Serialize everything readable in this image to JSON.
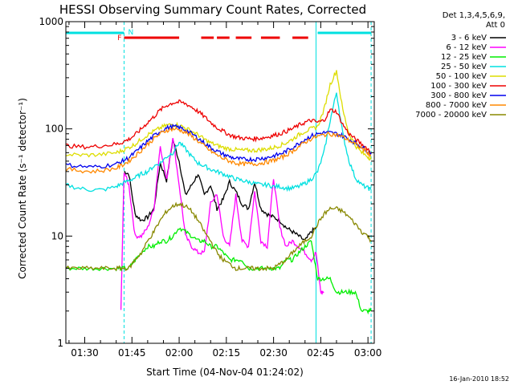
{
  "chart_data": {
    "type": "line",
    "title": "HESSI Observing Summary Count Rates, Corrected",
    "xlabel": "Start Time (04-Nov-04 01:24:02)",
    "ylabel": "Corrected Count Rate (s⁻¹ detector⁻¹)",
    "yscale": "log",
    "ylim": [
      1,
      1000
    ],
    "xlim_minutes": [
      84,
      182
    ],
    "x_tick_labels": [
      "01:30",
      "01:45",
      "02:00",
      "02:15",
      "02:30",
      "02:45",
      "03:00"
    ],
    "y_tick_labels": [
      "1",
      "10",
      "100",
      "1000"
    ],
    "legend_header": [
      "Det 1,3,4,5,6,9,",
      "Att 0"
    ],
    "legend_placement": "right",
    "footer": "16-Jan-2010 18:52",
    "flags": [
      {
        "name": "night",
        "label": "",
        "color": "#00e0e0",
        "segments": [
          [
            84,
            102.5
          ],
          [
            164,
            181
          ]
        ]
      },
      {
        "name": "F",
        "label": "F",
        "color": "#ee0000",
        "segments": [
          [
            102.5,
            120
          ],
          [
            127,
            131
          ],
          [
            132,
            136
          ],
          [
            138,
            143
          ],
          [
            146,
            152
          ],
          [
            156,
            161
          ]
        ]
      },
      {
        "name": "N",
        "label": "N",
        "color": "#00e0e0",
        "segments": []
      }
    ],
    "vertical_lines": [
      {
        "x": 84,
        "color": "#00e0e0",
        "style": "solid"
      },
      {
        "x": 102.5,
        "color": "#00e0e0",
        "style": "dashed"
      },
      {
        "x": 163.5,
        "color": "#00e0e0",
        "style": "solid"
      },
      {
        "x": 181,
        "color": "#00e0e0",
        "style": "dashed"
      }
    ],
    "series": [
      {
        "name": "3 - 6 keV",
        "color": "#000000",
        "x": [
          102.5,
          104,
          106,
          108,
          110,
          112,
          114,
          116,
          118,
          120,
          122,
          124,
          126,
          128,
          130,
          132,
          134,
          136,
          138,
          140,
          142,
          144,
          146,
          148,
          150,
          152,
          154,
          156,
          158,
          160,
          162,
          163.5
        ],
        "y": [
          40,
          38,
          16,
          14,
          15,
          18,
          48,
          33,
          80,
          50,
          24,
          30,
          38,
          24,
          30,
          18,
          22,
          32,
          26,
          20,
          18,
          32,
          18,
          16,
          15,
          14,
          12,
          11,
          10,
          9,
          11,
          12
        ]
      },
      {
        "name": "6 - 12 keV",
        "color": "#ff00ff",
        "x": [
          101.5,
          102.5,
          104,
          106,
          108,
          110,
          112,
          114,
          116,
          118,
          120,
          122,
          124,
          126,
          128,
          130,
          132,
          134,
          136,
          138,
          140,
          142,
          144,
          146,
          148,
          150,
          152,
          154,
          156,
          158,
          160,
          162,
          163.5,
          165,
          166
        ],
        "y": [
          2,
          40,
          30,
          10,
          10,
          12,
          18,
          70,
          33,
          85,
          30,
          10,
          8,
          7,
          7,
          20,
          25,
          10,
          8,
          24,
          9,
          8,
          26,
          9,
          8,
          35,
          12,
          8,
          9,
          8,
          7,
          6,
          7,
          3,
          3
        ]
      },
      {
        "name": "12 - 25 keV",
        "color": "#00ee00",
        "x": [
          84,
          88,
          92,
          96,
          100,
          102,
          104,
          106,
          108,
          110,
          112,
          114,
          116,
          118,
          120,
          122,
          124,
          126,
          128,
          130,
          132,
          134,
          136,
          138,
          140,
          142,
          144,
          146,
          148,
          150,
          152,
          154,
          156,
          158,
          160,
          162,
          164,
          166,
          168,
          170,
          172,
          174,
          176,
          178,
          180,
          181
        ],
        "y": [
          5,
          5,
          5,
          5,
          5,
          5,
          5,
          6,
          7,
          8,
          8,
          9,
          9,
          10,
          12,
          11,
          10,
          9,
          9,
          8,
          8,
          7,
          6,
          6,
          6,
          5,
          5,
          5,
          5,
          5,
          5,
          6,
          6,
          7,
          8,
          9,
          4,
          4,
          4,
          3,
          3,
          3,
          3,
          2,
          2,
          2
        ]
      },
      {
        "name": "25 - 50 keV",
        "color": "#00e0e0",
        "x": [
          84,
          88,
          92,
          96,
          100,
          102,
          104,
          106,
          108,
          110,
          112,
          114,
          116,
          118,
          120,
          122,
          124,
          126,
          128,
          130,
          132,
          134,
          136,
          138,
          140,
          142,
          144,
          146,
          148,
          150,
          152,
          154,
          156,
          158,
          160,
          162,
          164,
          166,
          168,
          170,
          172,
          174,
          176,
          178,
          180,
          181
        ],
        "y": [
          30,
          28,
          27,
          27,
          29,
          31,
          33,
          35,
          38,
          40,
          45,
          48,
          55,
          60,
          75,
          65,
          55,
          48,
          45,
          42,
          40,
          38,
          36,
          34,
          33,
          32,
          31,
          30,
          30,
          29,
          29,
          28,
          28,
          29,
          31,
          34,
          40,
          60,
          120,
          220,
          90,
          50,
          35,
          30,
          28,
          27
        ]
      },
      {
        "name": "50 - 100 keV",
        "color": "#dddd00",
        "x": [
          84,
          88,
          92,
          96,
          100,
          102,
          104,
          106,
          108,
          110,
          112,
          114,
          116,
          118,
          120,
          122,
          124,
          126,
          128,
          130,
          132,
          134,
          136,
          138,
          140,
          142,
          144,
          146,
          148,
          150,
          152,
          154,
          156,
          158,
          160,
          162,
          164,
          166,
          168,
          170,
          172,
          174,
          176,
          178,
          180,
          181
        ],
        "y": [
          58,
          57,
          57,
          58,
          60,
          63,
          67,
          72,
          80,
          88,
          95,
          102,
          108,
          110,
          108,
          102,
          95,
          88,
          80,
          74,
          70,
          67,
          65,
          64,
          63,
          63,
          63,
          64,
          65,
          67,
          70,
          74,
          80,
          88,
          95,
          100,
          105,
          150,
          260,
          350,
          150,
          90,
          70,
          60,
          55,
          52
        ]
      },
      {
        "name": "100 - 300 keV",
        "color": "#ee0000",
        "x": [
          84,
          88,
          92,
          96,
          100,
          102,
          104,
          106,
          108,
          110,
          112,
          114,
          116,
          118,
          120,
          122,
          124,
          126,
          128,
          130,
          132,
          134,
          136,
          138,
          140,
          142,
          144,
          146,
          148,
          150,
          152,
          154,
          156,
          158,
          160,
          162,
          164,
          166,
          168,
          170,
          172,
          174,
          176,
          178,
          180,
          181
        ],
        "y": [
          70,
          68,
          68,
          70,
          72,
          75,
          80,
          88,
          100,
          115,
          130,
          150,
          165,
          175,
          178,
          172,
          160,
          145,
          130,
          115,
          103,
          95,
          88,
          84,
          82,
          81,
          81,
          82,
          84,
          87,
          90,
          95,
          100,
          108,
          115,
          120,
          115,
          120,
          150,
          145,
          110,
          90,
          80,
          72,
          65,
          60
        ]
      },
      {
        "name": "300 - 800 keV",
        "color": "#0000ee",
        "x": [
          84,
          88,
          92,
          96,
          100,
          102,
          104,
          106,
          108,
          110,
          112,
          114,
          116,
          118,
          120,
          122,
          124,
          126,
          128,
          130,
          132,
          134,
          136,
          138,
          140,
          142,
          144,
          146,
          148,
          150,
          152,
          154,
          156,
          158,
          160,
          162,
          164,
          166,
          168,
          170,
          172,
          174,
          176,
          178,
          180,
          181
        ],
        "y": [
          46,
          45,
          44,
          45,
          47,
          50,
          54,
          60,
          68,
          77,
          86,
          95,
          102,
          105,
          103,
          98,
          90,
          82,
          74,
          67,
          62,
          58,
          55,
          53,
          52,
          52,
          52,
          53,
          54,
          56,
          58,
          62,
          67,
          73,
          80,
          86,
          90,
          92,
          92,
          90,
          86,
          80,
          74,
          68,
          62,
          58
        ]
      },
      {
        "name": "800 - 7000 keV",
        "color": "#ff8800",
        "x": [
          84,
          88,
          92,
          96,
          100,
          102,
          104,
          106,
          108,
          110,
          112,
          114,
          116,
          118,
          120,
          122,
          124,
          126,
          128,
          130,
          132,
          134,
          136,
          138,
          140,
          142,
          144,
          146,
          148,
          150,
          152,
          154,
          156,
          158,
          160,
          162,
          164,
          166,
          168,
          170,
          172,
          174,
          176,
          178,
          180,
          181
        ],
        "y": [
          42,
          41,
          40,
          41,
          43,
          46,
          50,
          56,
          63,
          72,
          81,
          90,
          97,
          100,
          98,
          93,
          85,
          77,
          69,
          62,
          57,
          53,
          50,
          48,
          47,
          47,
          47,
          48,
          49,
          51,
          53,
          57,
          62,
          68,
          75,
          81,
          85,
          88,
          90,
          88,
          84,
          78,
          72,
          66,
          60,
          56
        ]
      },
      {
        "name": "7000 - 20000 keV",
        "color": "#888800",
        "x": [
          84,
          88,
          92,
          96,
          100,
          102,
          104,
          106,
          108,
          110,
          112,
          114,
          116,
          118,
          120,
          122,
          124,
          126,
          128,
          130,
          132,
          134,
          136,
          138,
          140,
          142,
          144,
          146,
          148,
          150,
          152,
          154,
          156,
          158,
          160,
          162,
          164,
          166,
          168,
          170,
          172,
          174,
          176,
          178,
          180,
          181
        ],
        "y": [
          5,
          5,
          5,
          5,
          5,
          5,
          5,
          6,
          7,
          9,
          11,
          14,
          17,
          19,
          20,
          19,
          17,
          14,
          11,
          9,
          7,
          6,
          5.5,
          5,
          5,
          5,
          5,
          5,
          5,
          5,
          5.5,
          6,
          7,
          8,
          9,
          10,
          13,
          16,
          18,
          18,
          17,
          15,
          13,
          11,
          10,
          9
        ]
      }
    ]
  }
}
